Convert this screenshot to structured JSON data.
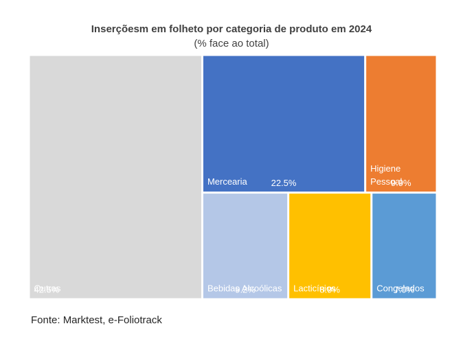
{
  "chart_data": {
    "type": "treemap",
    "title": "Inserçõesm em folheto por categoria de produto em 2024",
    "subtitle": "(% face ao total)",
    "unit": "%",
    "items": [
      {
        "name": "Outras",
        "value": 42.5,
        "value_label": "42.5%",
        "color": "#d9d9d9"
      },
      {
        "name": "Mercearia",
        "value": 22.5,
        "value_label": "22.5%",
        "color": "#4472c4"
      },
      {
        "name": "Higiene\nPessoal",
        "value": 9.9,
        "value_label": "9.9%",
        "color": "#ed7d31"
      },
      {
        "name": "Bebidas Alcoólicas",
        "value": 9.2,
        "value_label": "9.2%",
        "color": "#b4c7e7"
      },
      {
        "name": "Lacticínios",
        "value": 8.9,
        "value_label": "8.9%",
        "color": "#ffc000"
      },
      {
        "name": "Congelados",
        "value": 7.0,
        "value_label": "7.0%",
        "color": "#5b9bd5"
      }
    ]
  },
  "source": "Fonte: Marktest, e-Foliotrack"
}
